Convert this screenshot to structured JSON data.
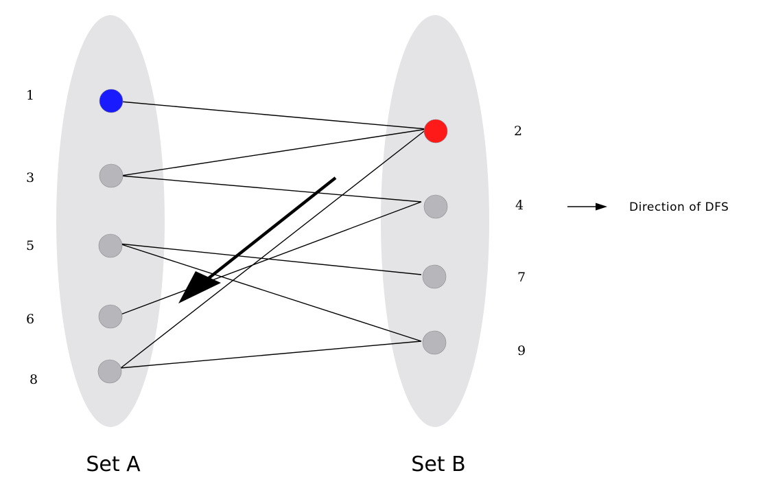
{
  "sets": {
    "a": {
      "label": "Set A"
    },
    "b": {
      "label": "Set B"
    }
  },
  "nodes": {
    "a1": {
      "label": "1",
      "color": "#1a1aff"
    },
    "a3": {
      "label": "3",
      "color": "#b7b7bb"
    },
    "a5": {
      "label": "5",
      "color": "#b7b7bb"
    },
    "a6": {
      "label": "6",
      "color": "#b7b7bb"
    },
    "a8": {
      "label": "8",
      "color": "#b7b7bb"
    },
    "b2": {
      "label": "2",
      "color": "#ff1a1a"
    },
    "b4": {
      "label": "4",
      "color": "#b7b7bb"
    },
    "b7": {
      "label": "7",
      "color": "#b7b7bb"
    },
    "b9": {
      "label": "9",
      "color": "#b7b7bb"
    }
  },
  "edges": [
    [
      "1",
      "2"
    ],
    [
      "3",
      "2"
    ],
    [
      "3",
      "4"
    ],
    [
      "5",
      "7"
    ],
    [
      "5",
      "9"
    ],
    [
      "6",
      "4"
    ],
    [
      "8",
      "2"
    ],
    [
      "8",
      "9"
    ]
  ],
  "legend": {
    "label": "Direction of DFS"
  },
  "colors": {
    "set_fill": "#e4e4e6",
    "default_node": "#b7b7bb",
    "start_node": "#1a1aff",
    "current_node": "#ff1a1a"
  }
}
